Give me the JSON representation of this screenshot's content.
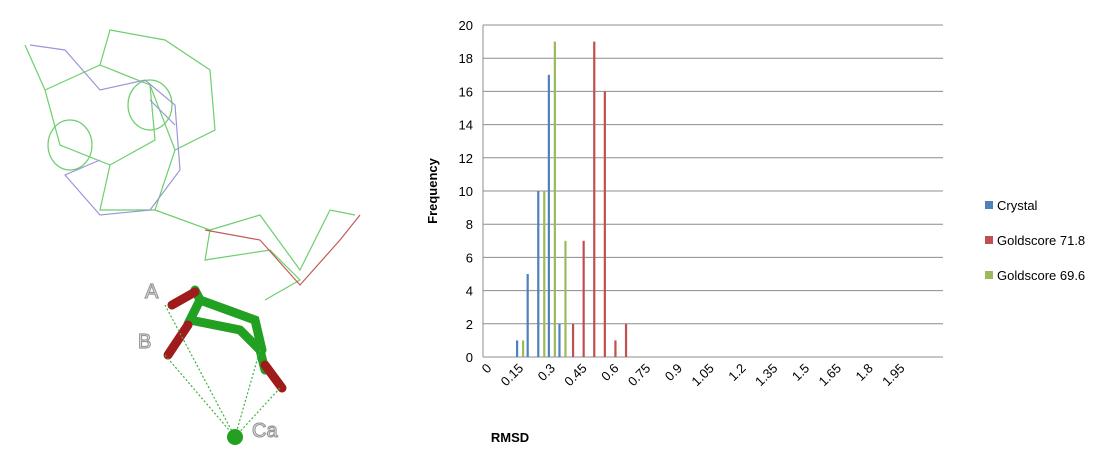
{
  "diagram": {
    "labels": [
      "A",
      "B",
      "Ca"
    ]
  },
  "chart_data": {
    "type": "bar",
    "x_label": "RMSD",
    "y_label": "Frequency",
    "categories": [
      "0",
      null,
      null,
      "0.15",
      null,
      null,
      "0.3",
      null,
      null,
      "0.45",
      null,
      null,
      "0.6",
      null,
      null,
      "0.75",
      null,
      null,
      "0.9",
      null,
      null,
      "1.05",
      null,
      null,
      "1.2",
      null,
      null,
      "1.35",
      null,
      null,
      "1.5",
      null,
      null,
      "1.65",
      null,
      null,
      "1.8",
      null,
      null,
      "1.95",
      null,
      null
    ],
    "series": [
      {
        "name": "Crystal",
        "color": "#4f81bd",
        "values": [
          0,
          0,
          0,
          1,
          5,
          10,
          17,
          2,
          0,
          0,
          0,
          0,
          0,
          0,
          0,
          0,
          0,
          0,
          0,
          0,
          0,
          0,
          0,
          0,
          0,
          0,
          0,
          0,
          0,
          0,
          0,
          0,
          0,
          0,
          0,
          0,
          0,
          0,
          0,
          0,
          0,
          0
        ]
      },
      {
        "name": "Goldscore 71.8",
        "color": "#c0504d",
        "values": [
          0,
          0,
          0,
          0,
          0,
          0,
          0,
          0,
          2,
          7,
          19,
          16,
          1,
          2,
          0,
          0,
          0,
          0,
          0,
          0,
          0,
          0,
          0,
          0,
          0,
          0,
          0,
          0,
          0,
          0,
          0,
          0,
          0,
          0,
          0,
          0,
          0,
          0,
          0,
          0,
          0,
          0
        ]
      },
      {
        "name": "Goldscore 69.6",
        "color": "#9bbb59",
        "values": [
          0,
          0,
          0,
          1,
          0,
          10,
          19,
          7,
          0,
          0,
          0,
          0,
          0,
          0,
          0,
          0,
          0,
          0,
          0,
          0,
          0,
          0,
          0,
          0,
          0,
          0,
          0,
          0,
          0,
          0,
          0,
          0,
          0,
          0,
          0,
          0,
          0,
          0,
          0,
          0,
          0,
          0
        ]
      }
    ],
    "ylim": [
      0,
      20
    ],
    "yticks": [
      0,
      2,
      4,
      6,
      8,
      10,
      12,
      14,
      16,
      18,
      20
    ],
    "grid": true,
    "legend": "right"
  }
}
